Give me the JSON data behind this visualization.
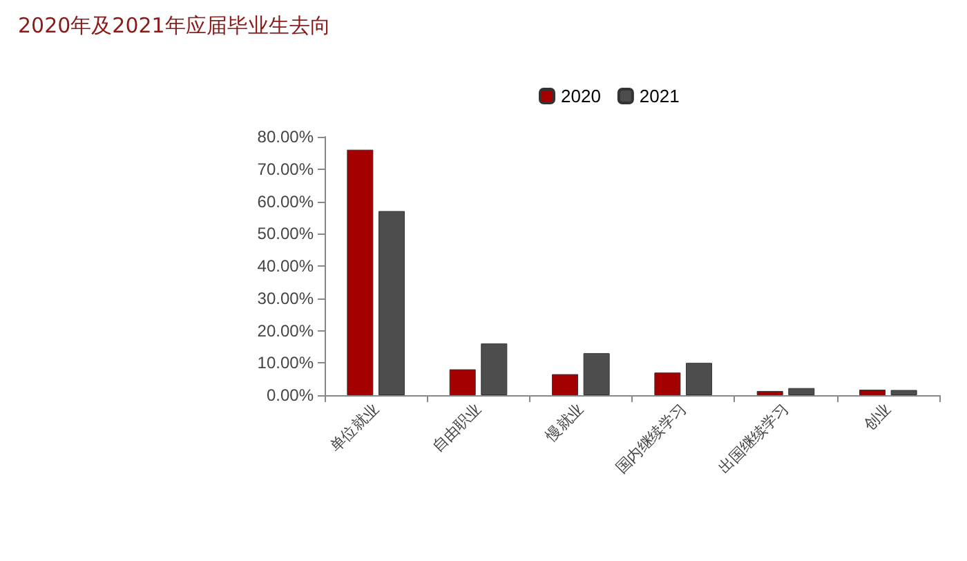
{
  "chart_data": {
    "type": "bar",
    "title": "2020年及2021年应届毕业生去向",
    "categories": [
      "单位就业",
      "自由职业",
      "慢就业",
      "国内继续学习",
      "出国继续学习",
      "创业"
    ],
    "series": [
      {
        "name": "2020",
        "color": "#a50000",
        "values": [
          76,
          8,
          6.5,
          7,
          1.3,
          1.7
        ]
      },
      {
        "name": "2021",
        "color": "#4d4d4d",
        "values": [
          57,
          16,
          13,
          10,
          2.2,
          1.6
        ]
      }
    ],
    "ylim": [
      0,
      80
    ],
    "yticks": [
      {
        "value": 0,
        "label": "0.00%"
      },
      {
        "value": 10,
        "label": "10.00%"
      },
      {
        "value": 20,
        "label": "20.00%"
      },
      {
        "value": 30,
        "label": "30.00%"
      },
      {
        "value": 40,
        "label": "40.00%"
      },
      {
        "value": 50,
        "label": "50.00%"
      },
      {
        "value": 60,
        "label": "60.00%"
      },
      {
        "value": 70,
        "label": "70.00%"
      },
      {
        "value": 80,
        "label": "80.00%"
      }
    ],
    "grid": false,
    "legend": "top right"
  }
}
